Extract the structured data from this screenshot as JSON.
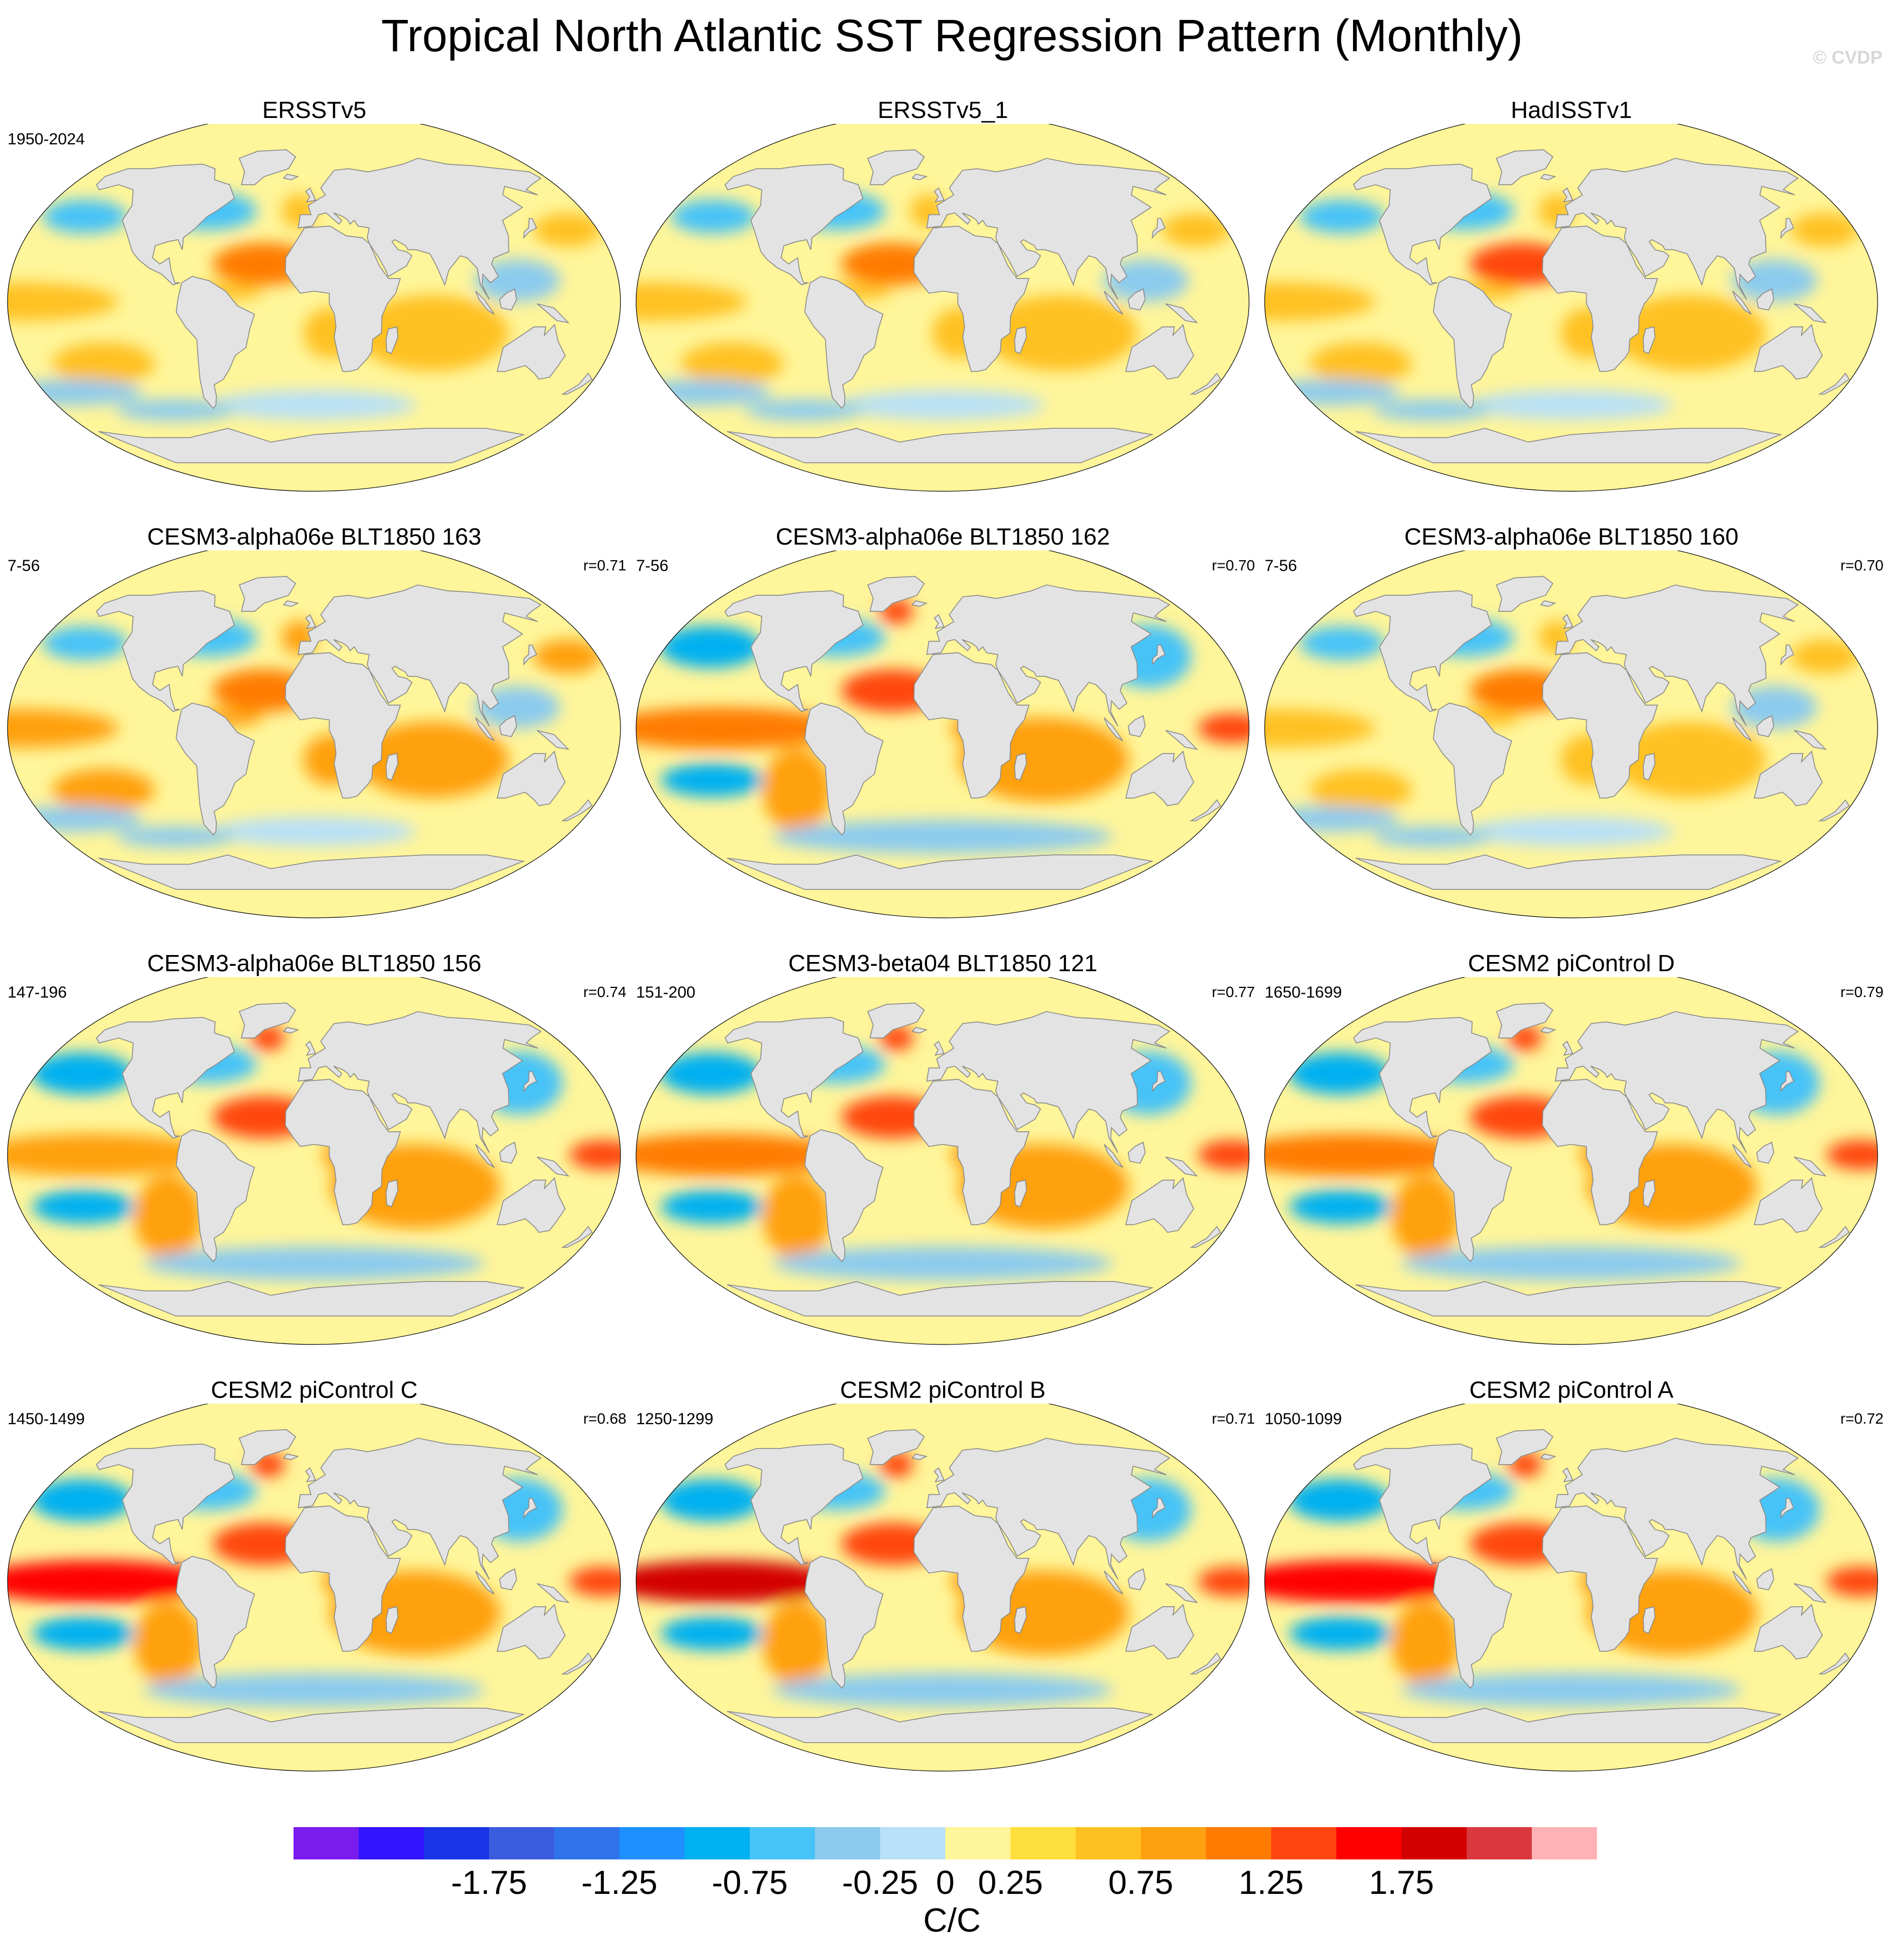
{
  "title": "Tropical North Atlantic SST Regression Pattern (Monthly)",
  "watermark": "© CVDP",
  "units": "C/C",
  "colors": {
    "ocean_base": "#fff59a",
    "land": "#e3e3e3",
    "coast": "#8a8a8a"
  },
  "colorbar": {
    "colors": [
      "#7b1cef",
      "#3314ff",
      "#1935e6",
      "#3a5ddf",
      "#2f73ea",
      "#1e90ff",
      "#00b0f0",
      "#46c3f7",
      "#8ccbee",
      "#b8e0f7",
      "#fff59a",
      "#ffdf3c",
      "#ffc122",
      "#ffa010",
      "#ff7c00",
      "#ff4610",
      "#ff0000",
      "#d30000",
      "#d9393e",
      "#ffb2b6"
    ],
    "labels": [
      "-1.75",
      "-1.25",
      "-0.75",
      "-0.25",
      "0",
      "0.25",
      "0.75",
      "1.25",
      "1.75"
    ],
    "label_bounds": [
      3,
      5,
      7,
      9,
      10,
      11,
      13,
      15,
      17
    ]
  },
  "panels": [
    {
      "title": "ERSSTv5",
      "years": "1950-2024",
      "corr": ""
    },
    {
      "title": "ERSSTv5_1",
      "years": "",
      "corr": ""
    },
    {
      "title": "HadISSTv1",
      "years": "",
      "corr": ""
    },
    {
      "title": "CESM3-alpha06e BLT1850 163",
      "years": "7-56",
      "corr": "r=0.71"
    },
    {
      "title": "CESM3-alpha06e BLT1850 162",
      "years": "7-56",
      "corr": "r=0.70"
    },
    {
      "title": "CESM3-alpha06e BLT1850 160",
      "years": "7-56",
      "corr": "r=0.70"
    },
    {
      "title": "CESM3-alpha06e BLT1850 156",
      "years": "147-196",
      "corr": "r=0.74"
    },
    {
      "title": "CESM3-beta04 BLT1850 121",
      "years": "151-200",
      "corr": "r=0.77"
    },
    {
      "title": "CESM2 piControl D",
      "years": "1650-1699",
      "corr": "r=0.79"
    },
    {
      "title": "CESM2 piControl C",
      "years": "1450-1499",
      "corr": "r=0.68"
    },
    {
      "title": "CESM2 piControl B",
      "years": "1250-1299",
      "corr": "r=0.71"
    },
    {
      "title": "CESM2 piControl A",
      "years": "1050-1099",
      "corr": "r=0.72"
    }
  ]
}
